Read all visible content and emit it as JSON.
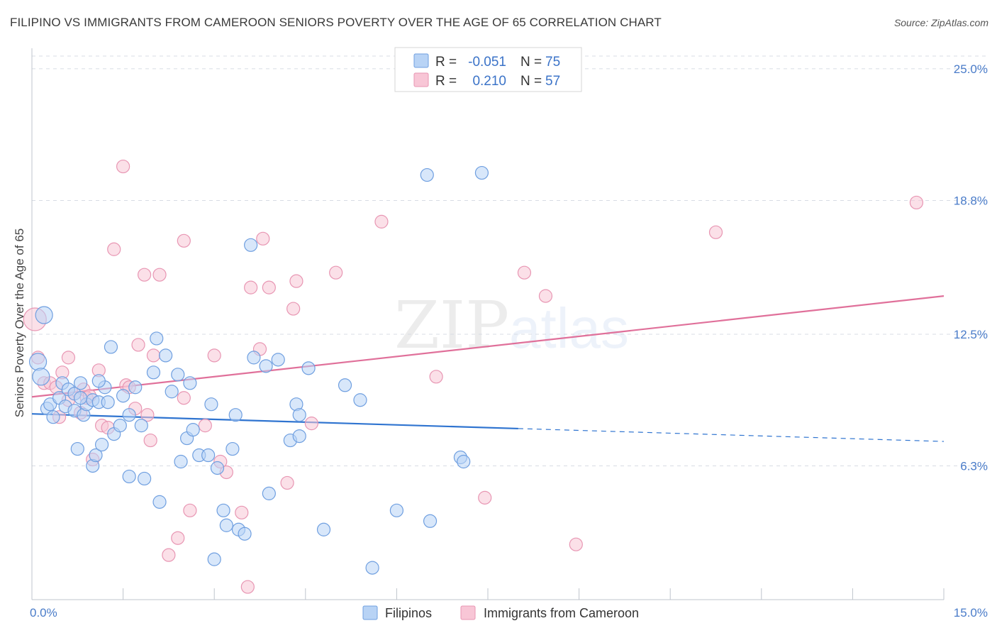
{
  "title": "FILIPINO VS IMMIGRANTS FROM CAMEROON SENIORS POVERTY OVER THE AGE OF 65 CORRELATION CHART",
  "source": "Source: ZipAtlas.com",
  "watermark": {
    "zip": "ZIP",
    "atlas": "atlas"
  },
  "legend_top": [
    {
      "r_label": "R =",
      "r_value": "-0.051",
      "n_label": "N =",
      "n_value": "75"
    },
    {
      "r_label": "R =",
      "r_value": "0.210",
      "n_label": "N =",
      "n_value": "57"
    }
  ],
  "legend_bottom": [
    "Filipinos",
    "Immigrants from Cameroon"
  ],
  "colors": {
    "filipino_fill": "#b8d3f5",
    "filipino_stroke": "#6f9fe0",
    "filipino_line": "#2f74d0",
    "cameroon_fill": "#f8c6d6",
    "cameroon_stroke": "#e896b3",
    "cameroon_line": "#e0709a",
    "tick_text": "#4a7cc9",
    "grid": "#d8dce4"
  },
  "chart_data": {
    "type": "scatter",
    "title": "FILIPINO VS IMMIGRANTS FROM CAMEROON SENIORS POVERTY OVER THE AGE OF 65 CORRELATION CHART",
    "xlabel": "",
    "ylabel": "Seniors Poverty Over the Age of 65",
    "xlim": [
      0,
      15
    ],
    "ylim": [
      0,
      25.9
    ],
    "x_tick_labels": [
      "0.0%",
      "15.0%"
    ],
    "y_ticks": [
      6.3,
      12.5,
      18.8,
      25.0
    ],
    "y_tick_labels": [
      "6.3%",
      "12.5%",
      "18.8%",
      "25.0%"
    ],
    "grid": true,
    "series": [
      {
        "name": "Filipinos",
        "r": -0.051,
        "n": 75,
        "trend": {
          "x0": 0.0,
          "y0": 8.75,
          "x1": 15.0,
          "y1": 7.45,
          "solid_until_x": 8.0
        },
        "points": [
          [
            0.1,
            11.2
          ],
          [
            0.15,
            10.5
          ],
          [
            0.2,
            13.4
          ],
          [
            0.25,
            9.0
          ],
          [
            0.3,
            9.2
          ],
          [
            0.35,
            8.6
          ],
          [
            0.45,
            9.5
          ],
          [
            0.5,
            10.2
          ],
          [
            0.55,
            9.1
          ],
          [
            0.6,
            9.9
          ],
          [
            0.7,
            8.9
          ],
          [
            0.7,
            9.7
          ],
          [
            0.75,
            7.1
          ],
          [
            0.8,
            10.2
          ],
          [
            0.85,
            8.7
          ],
          [
            0.9,
            9.2
          ],
          [
            1.0,
            9.4
          ],
          [
            1.0,
            6.3
          ],
          [
            1.05,
            6.8
          ],
          [
            1.1,
            9.3
          ],
          [
            1.15,
            7.3
          ],
          [
            1.2,
            10.0
          ],
          [
            1.3,
            11.9
          ],
          [
            1.35,
            7.8
          ],
          [
            1.45,
            8.2
          ],
          [
            1.5,
            9.6
          ],
          [
            1.6,
            5.8
          ],
          [
            1.7,
            10.0
          ],
          [
            1.8,
            8.2
          ],
          [
            1.85,
            5.7
          ],
          [
            2.0,
            10.7
          ],
          [
            2.05,
            12.3
          ],
          [
            2.1,
            4.6
          ],
          [
            2.2,
            11.5
          ],
          [
            2.3,
            9.8
          ],
          [
            2.4,
            10.6
          ],
          [
            2.45,
            6.5
          ],
          [
            2.55,
            7.6
          ],
          [
            2.6,
            10.2
          ],
          [
            2.65,
            8.0
          ],
          [
            2.75,
            6.8
          ],
          [
            2.9,
            6.8
          ],
          [
            2.95,
            9.2
          ],
          [
            3.0,
            1.9
          ],
          [
            3.05,
            6.2
          ],
          [
            3.15,
            4.2
          ],
          [
            3.2,
            3.5
          ],
          [
            3.3,
            7.1
          ],
          [
            3.35,
            8.7
          ],
          [
            3.4,
            3.3
          ],
          [
            3.5,
            3.1
          ],
          [
            3.6,
            16.7
          ],
          [
            3.65,
            11.4
          ],
          [
            3.85,
            11.0
          ],
          [
            3.9,
            5.0
          ],
          [
            4.05,
            11.3
          ],
          [
            4.25,
            7.5
          ],
          [
            4.35,
            9.2
          ],
          [
            4.4,
            7.7
          ],
          [
            4.4,
            8.7
          ],
          [
            4.55,
            10.9
          ],
          [
            4.8,
            3.3
          ],
          [
            5.15,
            10.1
          ],
          [
            5.4,
            9.4
          ],
          [
            5.6,
            1.5
          ],
          [
            6.0,
            4.2
          ],
          [
            6.5,
            20.0
          ],
          [
            6.55,
            3.7
          ],
          [
            7.05,
            6.7
          ],
          [
            7.1,
            6.5
          ],
          [
            7.4,
            20.1
          ],
          [
            1.1,
            10.3
          ],
          [
            1.25,
            9.3
          ],
          [
            1.6,
            8.7
          ],
          [
            0.8,
            9.5
          ]
        ]
      },
      {
        "name": "Immigrants from Cameroon",
        "r": 0.21,
        "n": 57,
        "trend": {
          "x0": 0.0,
          "y0": 9.55,
          "x1": 15.0,
          "y1": 14.3
        },
        "points": [
          [
            0.05,
            13.2
          ],
          [
            0.1,
            11.4
          ],
          [
            0.2,
            10.2
          ],
          [
            0.3,
            10.2
          ],
          [
            0.4,
            10.0
          ],
          [
            0.45,
            8.6
          ],
          [
            0.5,
            10.7
          ],
          [
            0.6,
            11.4
          ],
          [
            0.7,
            9.7
          ],
          [
            0.8,
            8.8
          ],
          [
            0.85,
            9.9
          ],
          [
            0.9,
            9.5
          ],
          [
            0.95,
            9.6
          ],
          [
            1.0,
            6.6
          ],
          [
            1.1,
            10.8
          ],
          [
            1.15,
            8.2
          ],
          [
            1.25,
            8.1
          ],
          [
            1.35,
            16.5
          ],
          [
            1.5,
            20.4
          ],
          [
            1.55,
            10.1
          ],
          [
            1.7,
            9.0
          ],
          [
            1.75,
            12.0
          ],
          [
            1.85,
            15.3
          ],
          [
            1.9,
            8.7
          ],
          [
            1.95,
            7.5
          ],
          [
            2.0,
            11.5
          ],
          [
            2.1,
            15.3
          ],
          [
            2.25,
            2.1
          ],
          [
            2.4,
            2.9
          ],
          [
            2.5,
            9.5
          ],
          [
            2.5,
            16.9
          ],
          [
            2.6,
            4.2
          ],
          [
            2.85,
            8.2
          ],
          [
            3.0,
            11.5
          ],
          [
            3.1,
            6.5
          ],
          [
            3.2,
            6.0
          ],
          [
            3.45,
            4.1
          ],
          [
            3.55,
            0.6
          ],
          [
            3.6,
            14.7
          ],
          [
            3.75,
            11.8
          ],
          [
            3.8,
            17.0
          ],
          [
            3.9,
            14.7
          ],
          [
            4.2,
            5.5
          ],
          [
            4.3,
            13.7
          ],
          [
            4.35,
            15.0
          ],
          [
            4.6,
            8.3
          ],
          [
            5.0,
            15.4
          ],
          [
            5.75,
            17.8
          ],
          [
            6.65,
            10.5
          ],
          [
            7.45,
            4.8
          ],
          [
            8.1,
            15.4
          ],
          [
            8.45,
            14.3
          ],
          [
            8.95,
            2.6
          ],
          [
            11.25,
            17.3
          ],
          [
            14.55,
            18.7
          ],
          [
            1.6,
            10.0
          ],
          [
            0.6,
            9.4
          ]
        ]
      }
    ]
  }
}
